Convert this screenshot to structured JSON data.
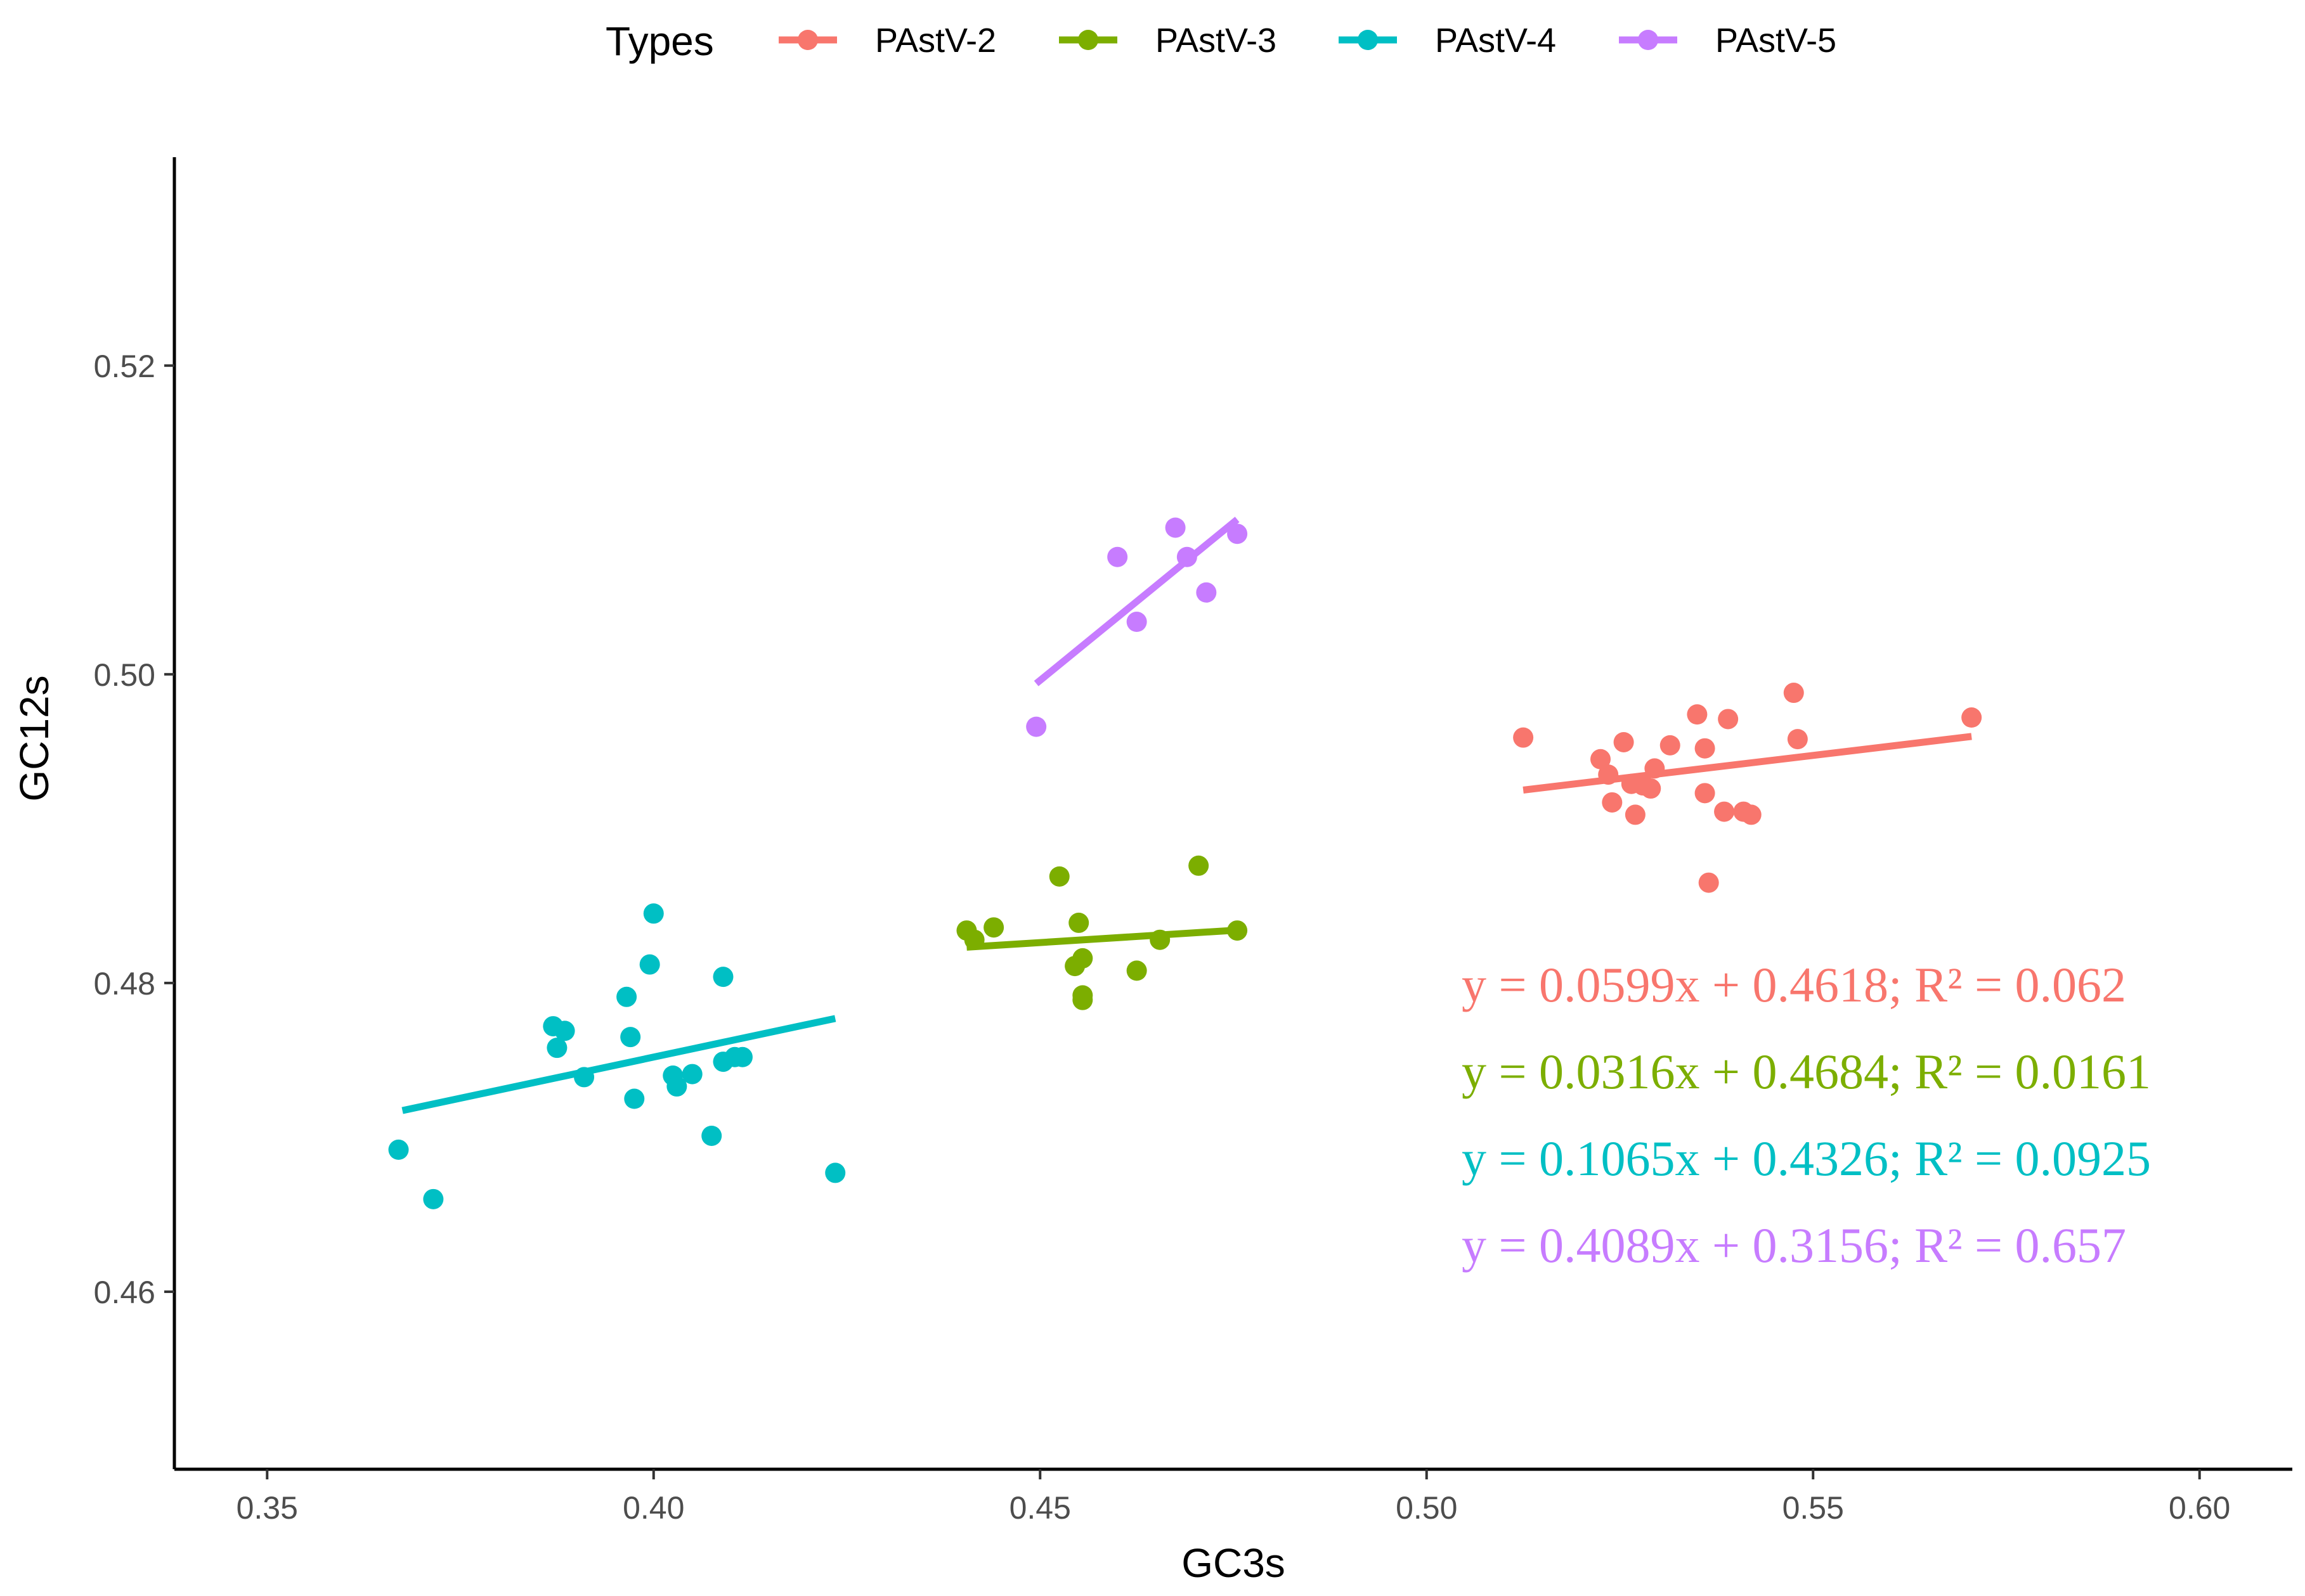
{
  "chart_data": {
    "type": "scatter",
    "title": "",
    "xlabel": "GC3s",
    "ylabel": "GC12s",
    "xlim": [
      0.338,
      0.612
    ],
    "ylim": [
      0.4485,
      0.5335
    ],
    "x_ticks": [
      0.35,
      0.4,
      0.45,
      0.5,
      0.55,
      0.6
    ],
    "x_tick_labels": [
      "0.35",
      "0.40",
      "0.45",
      "0.50",
      "0.55",
      "0.60"
    ],
    "y_ticks": [
      0.46,
      0.48,
      0.5,
      0.52
    ],
    "y_tick_labels": [
      "0.46",
      "0.48",
      "0.50",
      "0.52"
    ],
    "grid": false,
    "legend": {
      "title": "Types",
      "position": "top"
    },
    "series": [
      {
        "name": "PAstV-2",
        "color": "#F8766D",
        "equation": "y = 0.0599x + 0.4618; R² = 0.062",
        "fit": {
          "slope": 0.0599,
          "intercept": 0.4618,
          "x_range": [
            0.5125,
            0.5705
          ]
        },
        "x": [
          0.5125,
          0.5225,
          0.5235,
          0.524,
          0.5255,
          0.5265,
          0.527,
          0.528,
          0.529,
          0.5295,
          0.5315,
          0.535,
          0.536,
          0.536,
          0.5365,
          0.5385,
          0.539,
          0.541,
          0.542,
          0.5475,
          0.548,
          0.5705
        ],
        "y": [
          0.4959,
          0.4945,
          0.4935,
          0.4917,
          0.4956,
          0.4929,
          0.4909,
          0.4928,
          0.4926,
          0.4939,
          0.4954,
          0.4974,
          0.4952,
          0.4923,
          0.4865,
          0.4911,
          0.4971,
          0.4911,
          0.4909,
          0.4988,
          0.4958,
          0.4972
        ]
      },
      {
        "name": "PAstV-3",
        "color": "#7CAE00",
        "equation": "y = 0.0316x + 0.4684; R² = 0.0161",
        "fit": {
          "slope": 0.0316,
          "intercept": 0.4684,
          "x_range": [
            0.4405,
            0.4755
          ]
        },
        "x": [
          0.4405,
          0.4415,
          0.444,
          0.4525,
          0.4545,
          0.455,
          0.4555,
          0.4555,
          0.4555,
          0.4625,
          0.4655,
          0.4705,
          0.4755
        ],
        "y": [
          0.4834,
          0.4828,
          0.4836,
          0.4869,
          0.4811,
          0.4839,
          0.4816,
          0.4792,
          0.4789,
          0.4808,
          0.4828,
          0.4876,
          0.4834
        ]
      },
      {
        "name": "PAstV-4",
        "color": "#00BFC4",
        "equation": "y = 0.1065x + 0.4326; R² = 0.0925",
        "fit": {
          "slope": 0.1065,
          "intercept": 0.4326,
          "x_range": [
            0.3675,
            0.4235
          ]
        },
        "x": [
          0.367,
          0.3715,
          0.387,
          0.3875,
          0.3885,
          0.391,
          0.3965,
          0.397,
          0.3975,
          0.3995,
          0.4,
          0.4025,
          0.403,
          0.405,
          0.4075,
          0.409,
          0.409,
          0.4105,
          0.4115,
          0.4235
        ],
        "y": [
          0.4692,
          0.466,
          0.4772,
          0.4758,
          0.4769,
          0.4739,
          0.4791,
          0.4765,
          0.4725,
          0.4812,
          0.4845,
          0.474,
          0.4733,
          0.4741,
          0.4701,
          0.4804,
          0.4749,
          0.4752,
          0.4752,
          0.4677
        ]
      },
      {
        "name": "PAstV-5",
        "color": "#C77CFF",
        "equation": "y = 0.4089x + 0.3156; R² = 0.657",
        "fit": {
          "slope": 0.4089,
          "intercept": 0.3156,
          "x_range": [
            0.4495,
            0.4755
          ]
        },
        "x": [
          0.4495,
          0.46,
          0.4625,
          0.4675,
          0.469,
          0.4715,
          0.4755
        ],
        "y": [
          0.4966,
          0.5076,
          0.5034,
          0.5095,
          0.5076,
          0.5053,
          0.5091
        ]
      }
    ]
  }
}
